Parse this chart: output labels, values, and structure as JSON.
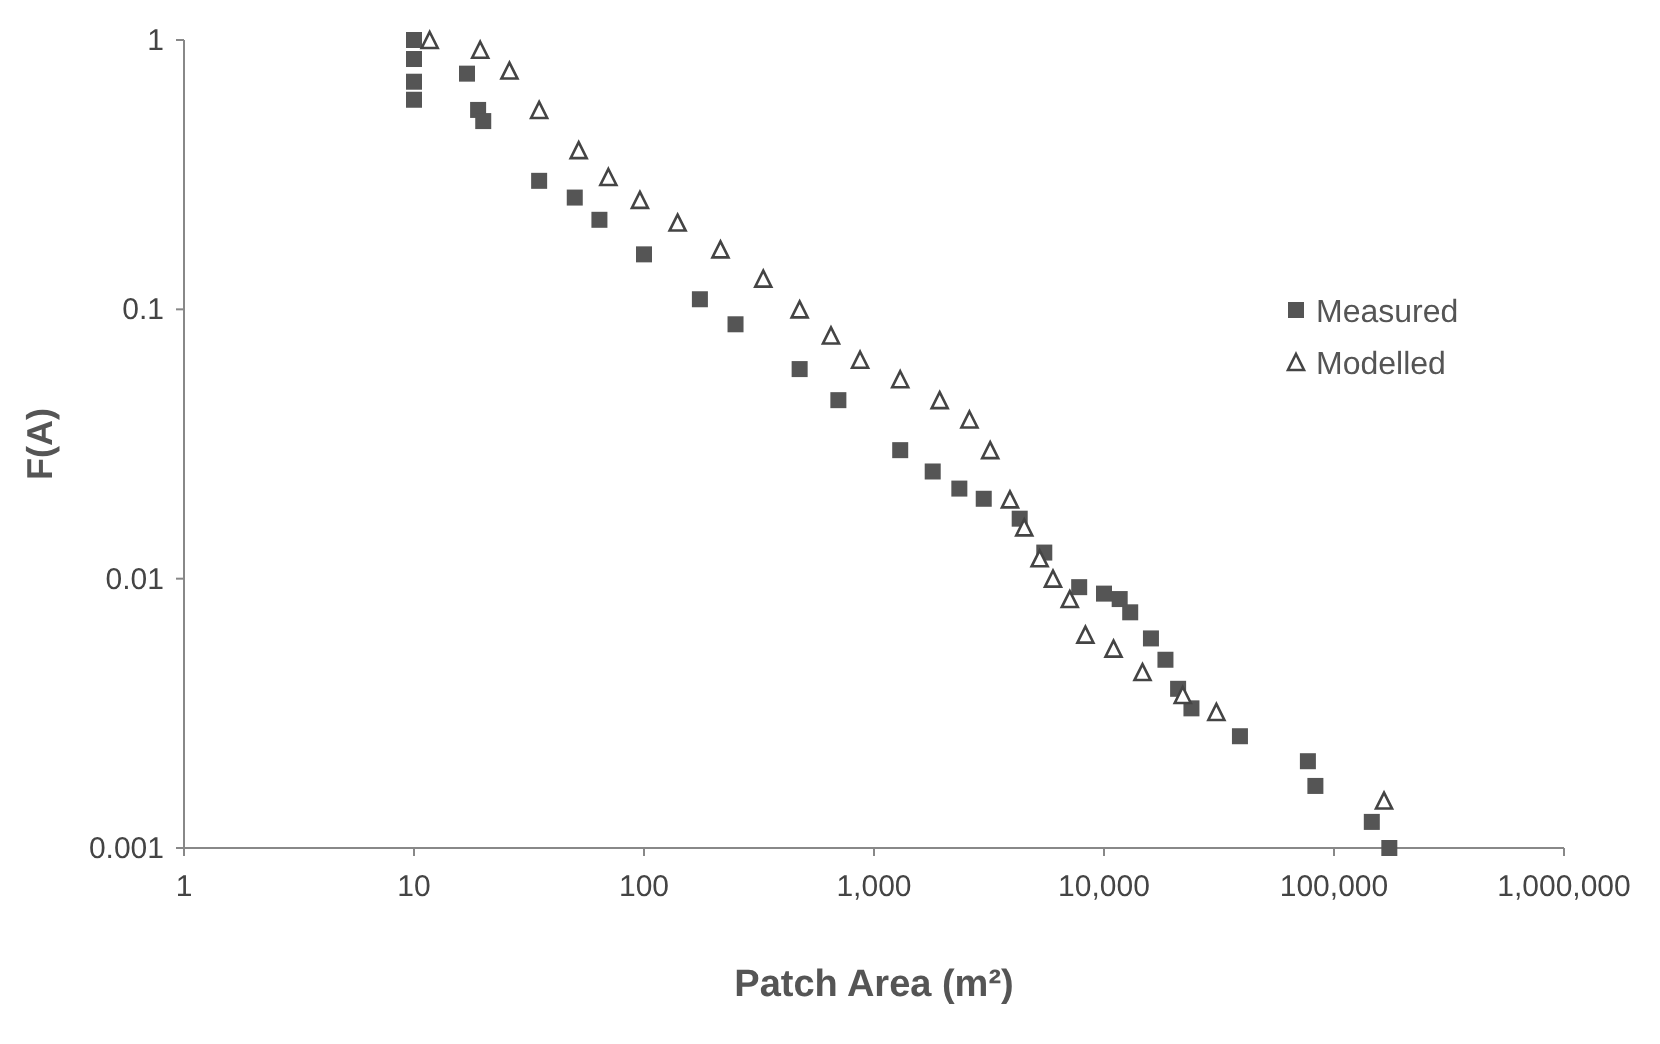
{
  "chart_data": {
    "type": "scatter",
    "xlabel": "Patch Area (m²)",
    "ylabel": "F(A)",
    "log": "xy",
    "xlim": [
      1,
      1000000
    ],
    "ylim": [
      0.001,
      1
    ],
    "xticks": [
      1,
      10,
      100,
      {
        "value": 1000,
        "label": "1,000"
      },
      {
        "value": 10000,
        "label": "10,000"
      },
      {
        "value": 100000,
        "label": "100,000"
      },
      {
        "value": 1000000,
        "label": "1,000,000"
      }
    ],
    "yticks": [
      0.001,
      0.01,
      0.1,
      1
    ],
    "grid": false,
    "legend": "right",
    "series": [
      {
        "name": "Measured",
        "color": "#555555",
        "marker": "square",
        "x": [
          10,
          10,
          10,
          10,
          17,
          19,
          20,
          35,
          50,
          64,
          100,
          175,
          250,
          475,
          700,
          1300,
          1800,
          2350,
          3000,
          4300,
          5500,
          7800,
          10000,
          11700,
          13000,
          16000,
          18500,
          21000,
          24000,
          39000,
          77000,
          83000,
          146000,
          174000
        ],
        "values": [
          1,
          0.85,
          0.7,
          0.6,
          0.75,
          0.55,
          0.5,
          0.3,
          0.26,
          0.215,
          0.16,
          0.109,
          0.088,
          0.06,
          0.046,
          0.03,
          0.025,
          0.0216,
          0.0198,
          0.0167,
          0.0125,
          0.0093,
          0.0088,
          0.0084,
          0.0075,
          0.006,
          0.005,
          0.0039,
          0.0033,
          0.0026,
          0.0021,
          0.0017,
          0.00125,
          0.001
        ]
      },
      {
        "name": "Modelled",
        "color": "#444444",
        "marker": "triangle",
        "x": [
          11.7,
          19.4,
          26,
          35,
          52,
          70,
          96,
          140,
          215,
          330,
          475,
          650,
          870,
          1300,
          1930,
          2600,
          3200,
          3900,
          4500,
          5250,
          6000,
          7100,
          8300,
          11000,
          14700,
          22000,
          30800,
          165000
        ],
        "values": [
          1,
          0.92,
          0.77,
          0.55,
          0.39,
          0.31,
          0.255,
          0.21,
          0.167,
          0.13,
          0.1,
          0.08,
          0.065,
          0.055,
          0.046,
          0.039,
          0.03,
          0.0197,
          0.0155,
          0.0119,
          0.01,
          0.0084,
          0.0062,
          0.0055,
          0.0045,
          0.0037,
          0.0032,
          0.0015
        ]
      }
    ]
  }
}
